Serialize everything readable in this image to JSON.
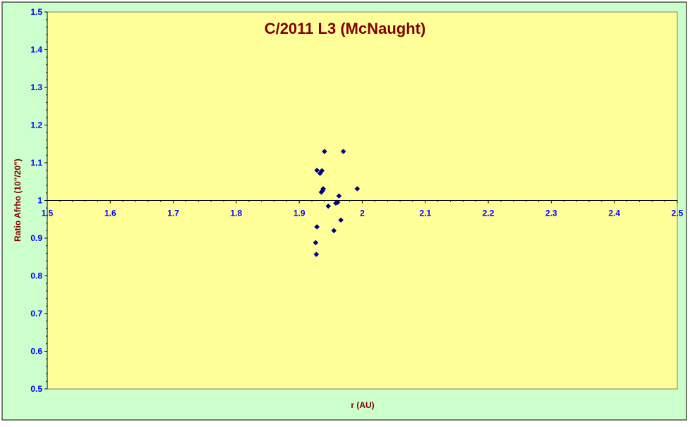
{
  "chart_data": {
    "type": "scatter",
    "title": "C/2011 L3 (McNaught)",
    "xlabel": "r (AU)",
    "ylabel": "Ratio Afrho (10\"/20\")",
    "xlim": [
      1.5,
      2.5
    ],
    "ylim": [
      0.5,
      1.5
    ],
    "x_ticks": [
      "1.5",
      "1.6",
      "1.7",
      "1.8",
      "1.9",
      "2",
      "2.1",
      "2.2",
      "2.3",
      "2.4",
      "2.5"
    ],
    "y_ticks": [
      "0.5",
      "0.6",
      "0.7",
      "0.8",
      "0.9",
      "1",
      "1.1",
      "1.2",
      "1.3",
      "1.4",
      "1.5"
    ],
    "reference_line_y": 1,
    "grid": false,
    "legend": "none",
    "colors": {
      "chart_area": "#ccffcc",
      "plot_area": "#ffff99",
      "marker": "#000080",
      "title": "#800000",
      "ticks": "#0000ff"
    },
    "points": [
      {
        "x": 1.927,
        "y": 0.857
      },
      {
        "x": 1.926,
        "y": 0.888
      },
      {
        "x": 1.928,
        "y": 0.93
      },
      {
        "x": 1.928,
        "y": 1.08
      },
      {
        "x": 1.933,
        "y": 1.072
      },
      {
        "x": 1.936,
        "y": 1.079
      },
      {
        "x": 1.935,
        "y": 1.022
      },
      {
        "x": 1.937,
        "y": 1.026
      },
      {
        "x": 1.938,
        "y": 1.031
      },
      {
        "x": 1.94,
        "y": 1.13
      },
      {
        "x": 1.946,
        "y": 0.985
      },
      {
        "x": 1.955,
        "y": 0.92
      },
      {
        "x": 1.958,
        "y": 0.993
      },
      {
        "x": 1.961,
        "y": 0.995
      },
      {
        "x": 1.963,
        "y": 1.012
      },
      {
        "x": 1.966,
        "y": 0.948
      },
      {
        "x": 1.97,
        "y": 1.13
      },
      {
        "x": 1.992,
        "y": 1.031
      }
    ]
  }
}
